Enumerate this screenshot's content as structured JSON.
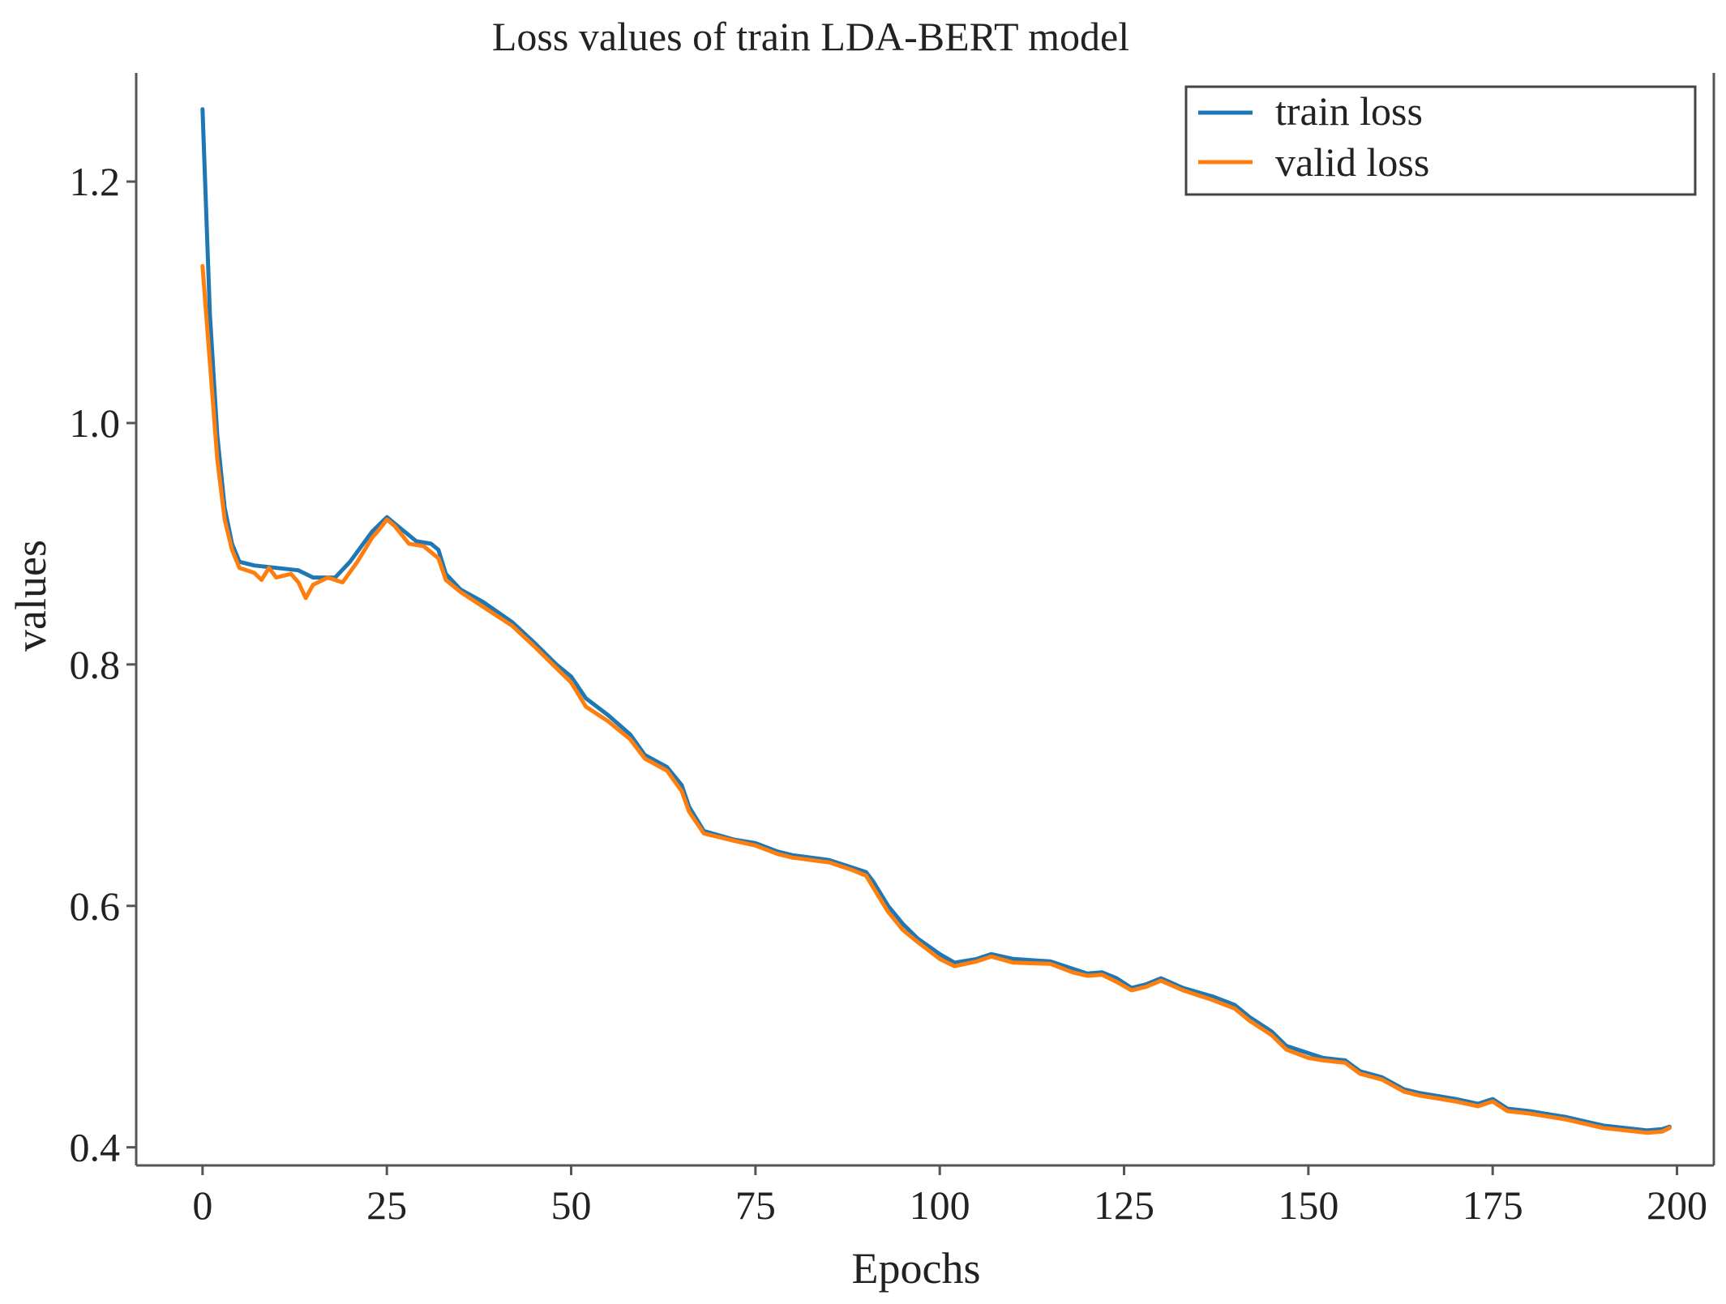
{
  "chart_data": {
    "type": "line",
    "title": "Loss values of train LDA-BERT model",
    "xlabel": "Epochs",
    "ylabel": "values",
    "xlim": [
      -9,
      205
    ],
    "ylim": [
      0.385,
      1.29
    ],
    "xticks": [
      0,
      25,
      50,
      75,
      100,
      125,
      150,
      175,
      200
    ],
    "xtick_labels": [
      "0",
      "25",
      "50",
      "75",
      "100",
      "125",
      "150",
      "175",
      "200"
    ],
    "yticks": [
      0.4,
      0.6,
      0.8,
      1.0,
      1.2
    ],
    "ytick_labels": [
      "0.4",
      "0.6",
      "0.8",
      "1.0",
      "1.2"
    ],
    "grid": false,
    "legend_position": "top-right",
    "series": [
      {
        "name": "train loss",
        "color": "#1f77b4",
        "keypoints": [
          [
            0,
            1.26
          ],
          [
            1,
            1.09
          ],
          [
            2,
            0.99
          ],
          [
            3,
            0.93
          ],
          [
            4,
            0.9
          ],
          [
            5,
            0.885
          ],
          [
            7,
            0.882
          ],
          [
            10,
            0.88
          ],
          [
            13,
            0.878
          ],
          [
            15,
            0.872
          ],
          [
            18,
            0.872
          ],
          [
            20,
            0.885
          ],
          [
            23,
            0.91
          ],
          [
            25,
            0.922
          ],
          [
            27,
            0.912
          ],
          [
            29,
            0.902
          ],
          [
            31,
            0.9
          ],
          [
            32,
            0.895
          ],
          [
            33,
            0.875
          ],
          [
            35,
            0.862
          ],
          [
            38,
            0.852
          ],
          [
            42,
            0.835
          ],
          [
            45,
            0.818
          ],
          [
            48,
            0.8
          ],
          [
            50,
            0.79
          ],
          [
            52,
            0.772
          ],
          [
            55,
            0.758
          ],
          [
            58,
            0.742
          ],
          [
            60,
            0.725
          ],
          [
            63,
            0.715
          ],
          [
            65,
            0.7
          ],
          [
            66,
            0.682
          ],
          [
            68,
            0.662
          ],
          [
            72,
            0.655
          ],
          [
            75,
            0.652
          ],
          [
            78,
            0.645
          ],
          [
            80,
            0.642
          ],
          [
            85,
            0.638
          ],
          [
            88,
            0.632
          ],
          [
            90,
            0.628
          ],
          [
            91,
            0.62
          ],
          [
            93,
            0.6
          ],
          [
            95,
            0.585
          ],
          [
            97,
            0.573
          ],
          [
            100,
            0.56
          ],
          [
            102,
            0.553
          ],
          [
            105,
            0.556
          ],
          [
            107,
            0.56
          ],
          [
            110,
            0.556
          ],
          [
            115,
            0.554
          ],
          [
            118,
            0.548
          ],
          [
            120,
            0.544
          ],
          [
            122,
            0.545
          ],
          [
            124,
            0.54
          ],
          [
            126,
            0.532
          ],
          [
            128,
            0.535
          ],
          [
            130,
            0.54
          ],
          [
            133,
            0.532
          ],
          [
            137,
            0.525
          ],
          [
            140,
            0.518
          ],
          [
            142,
            0.508
          ],
          [
            145,
            0.496
          ],
          [
            147,
            0.484
          ],
          [
            150,
            0.478
          ],
          [
            152,
            0.474
          ],
          [
            155,
            0.472
          ],
          [
            157,
            0.463
          ],
          [
            160,
            0.458
          ],
          [
            163,
            0.448
          ],
          [
            165,
            0.445
          ],
          [
            170,
            0.44
          ],
          [
            173,
            0.436
          ],
          [
            175,
            0.44
          ],
          [
            177,
            0.432
          ],
          [
            180,
            0.43
          ],
          [
            185,
            0.425
          ],
          [
            190,
            0.418
          ],
          [
            193,
            0.416
          ],
          [
            196,
            0.414
          ],
          [
            198,
            0.415
          ],
          [
            199,
            0.417
          ]
        ]
      },
      {
        "name": "valid loss",
        "color": "#ff7f0e",
        "keypoints": [
          [
            0,
            1.13
          ],
          [
            1,
            1.05
          ],
          [
            2,
            0.97
          ],
          [
            3,
            0.92
          ],
          [
            4,
            0.895
          ],
          [
            5,
            0.88
          ],
          [
            7,
            0.876
          ],
          [
            8,
            0.87
          ],
          [
            9,
            0.88
          ],
          [
            10,
            0.872
          ],
          [
            12,
            0.875
          ],
          [
            13,
            0.868
          ],
          [
            14,
            0.855
          ],
          [
            15,
            0.866
          ],
          [
            17,
            0.872
          ],
          [
            19,
            0.868
          ],
          [
            21,
            0.885
          ],
          [
            23,
            0.905
          ],
          [
            24,
            0.912
          ],
          [
            25,
            0.92
          ],
          [
            26,
            0.915
          ],
          [
            28,
            0.9
          ],
          [
            30,
            0.898
          ],
          [
            32,
            0.888
          ],
          [
            33,
            0.87
          ],
          [
            35,
            0.86
          ],
          [
            38,
            0.848
          ],
          [
            42,
            0.832
          ],
          [
            45,
            0.815
          ],
          [
            48,
            0.797
          ],
          [
            50,
            0.785
          ],
          [
            52,
            0.765
          ],
          [
            55,
            0.753
          ],
          [
            58,
            0.738
          ],
          [
            60,
            0.722
          ],
          [
            63,
            0.712
          ],
          [
            65,
            0.695
          ],
          [
            66,
            0.678
          ],
          [
            68,
            0.66
          ],
          [
            72,
            0.654
          ],
          [
            75,
            0.65
          ],
          [
            78,
            0.643
          ],
          [
            80,
            0.64
          ],
          [
            85,
            0.636
          ],
          [
            88,
            0.63
          ],
          [
            90,
            0.625
          ],
          [
            91,
            0.615
          ],
          [
            93,
            0.595
          ],
          [
            95,
            0.58
          ],
          [
            97,
            0.57
          ],
          [
            100,
            0.556
          ],
          [
            102,
            0.55
          ],
          [
            105,
            0.554
          ],
          [
            107,
            0.558
          ],
          [
            110,
            0.553
          ],
          [
            115,
            0.552
          ],
          [
            118,
            0.545
          ],
          [
            120,
            0.542
          ],
          [
            122,
            0.543
          ],
          [
            124,
            0.537
          ],
          [
            126,
            0.53
          ],
          [
            128,
            0.533
          ],
          [
            130,
            0.538
          ],
          [
            133,
            0.53
          ],
          [
            137,
            0.522
          ],
          [
            140,
            0.515
          ],
          [
            142,
            0.505
          ],
          [
            145,
            0.493
          ],
          [
            147,
            0.481
          ],
          [
            150,
            0.474
          ],
          [
            152,
            0.472
          ],
          [
            155,
            0.47
          ],
          [
            157,
            0.461
          ],
          [
            160,
            0.456
          ],
          [
            163,
            0.446
          ],
          [
            165,
            0.443
          ],
          [
            170,
            0.438
          ],
          [
            173,
            0.434
          ],
          [
            175,
            0.438
          ],
          [
            177,
            0.43
          ],
          [
            180,
            0.428
          ],
          [
            185,
            0.423
          ],
          [
            190,
            0.416
          ],
          [
            193,
            0.414
          ],
          [
            196,
            0.412
          ],
          [
            198,
            0.413
          ],
          [
            199,
            0.416
          ]
        ]
      }
    ]
  }
}
